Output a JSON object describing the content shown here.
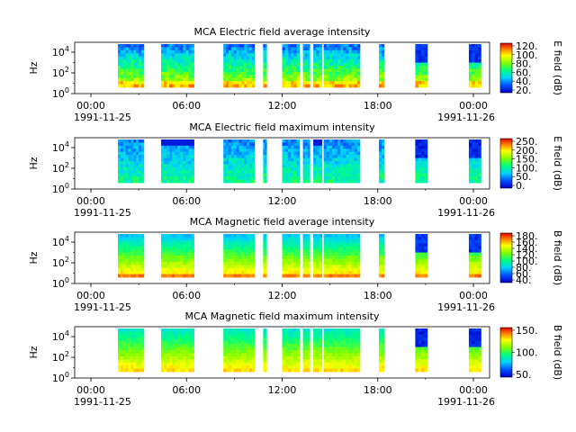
{
  "chart_data": [
    {
      "type": "heatmap",
      "title": "MCA  Electric field average intensity",
      "ylabel": "Hz",
      "y_scale": "log",
      "y_ticks": [
        {
          "base": "10",
          "exp": "0"
        },
        {
          "base": "10",
          "exp": "2"
        },
        {
          "base": "10",
          "exp": "4"
        }
      ],
      "x_ticks": [
        "00:00",
        "06:00",
        "12:00",
        "18:00",
        "00:00"
      ],
      "x_start_date": "1991-11-25",
      "x_end_date": "1991-11-26",
      "colorbar_label": "E field (dB)",
      "colorbar_ticks": [
        "20.",
        "40.",
        "60.",
        "80.",
        "100.",
        "120."
      ],
      "palette": "rainbow-jet",
      "style": "avg-e"
    },
    {
      "type": "heatmap",
      "title": "MCA  Electric field maximum intensity",
      "ylabel": "Hz",
      "y_scale": "log",
      "y_ticks": [
        {
          "base": "10",
          "exp": "0"
        },
        {
          "base": "10",
          "exp": "2"
        },
        {
          "base": "10",
          "exp": "4"
        }
      ],
      "x_ticks": [
        "00:00",
        "06:00",
        "12:00",
        "18:00",
        "00:00"
      ],
      "x_start_date": "1991-11-25",
      "x_end_date": "1991-11-26",
      "colorbar_label": "E field (dB)",
      "colorbar_ticks": [
        "0.",
        "50.",
        "100.",
        "150.",
        "200.",
        "250."
      ],
      "palette": "rainbow-jet",
      "style": "max-e"
    },
    {
      "type": "heatmap",
      "title": "MCA  Magnetic field average intensity",
      "ylabel": "Hz",
      "y_scale": "log",
      "y_ticks": [
        {
          "base": "10",
          "exp": "0"
        },
        {
          "base": "10",
          "exp": "2"
        },
        {
          "base": "10",
          "exp": "4"
        }
      ],
      "x_ticks": [
        "00:00",
        "06:00",
        "12:00",
        "18:00",
        "00:00"
      ],
      "x_start_date": "1991-11-25",
      "x_end_date": "1991-11-26",
      "colorbar_label": "B field (dB)",
      "colorbar_ticks": [
        "40.",
        "60.",
        "80.",
        "100.",
        "120.",
        "140.",
        "160.",
        "180."
      ],
      "palette": "rainbow-jet",
      "style": "avg-b"
    },
    {
      "type": "heatmap",
      "title": "MCA  Magnetic field maximum intensity",
      "ylabel": "Hz",
      "y_scale": "log",
      "y_ticks": [
        {
          "base": "10",
          "exp": "0"
        },
        {
          "base": "10",
          "exp": "2"
        },
        {
          "base": "10",
          "exp": "4"
        }
      ],
      "x_ticks": [
        "00:00",
        "06:00",
        "12:00",
        "18:00",
        "00:00"
      ],
      "x_start_date": "1991-11-25",
      "x_end_date": "1991-11-26",
      "colorbar_label": "B field (dB)",
      "colorbar_ticks": [
        "50.",
        "100.",
        "150."
      ],
      "palette": "rainbow-jet",
      "style": "max-b"
    }
  ]
}
